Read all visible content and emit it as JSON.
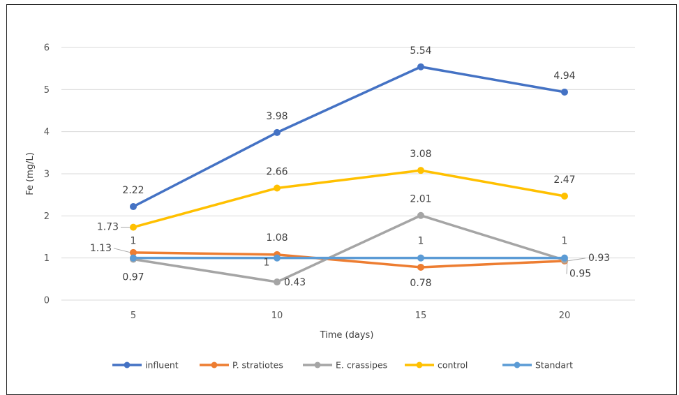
{
  "chart_data": {
    "type": "line",
    "x": [
      5,
      10,
      15,
      20
    ],
    "xlabel": "Time (days)",
    "ylabel": "Fe (mg/L)",
    "ylim": [
      0,
      6
    ],
    "yticks": [
      0,
      1,
      2,
      3,
      4,
      5,
      6
    ],
    "grid": true,
    "legend": "bottom",
    "series": [
      {
        "name": "influent",
        "color": "#4472C4",
        "values": [
          2.22,
          3.98,
          5.54,
          4.94
        ],
        "labels": [
          "2.22",
          "3.98",
          "5.54",
          "4.94"
        ]
      },
      {
        "name": "P. stratiotes",
        "color": "#ED7D31",
        "values": [
          1.13,
          1.08,
          0.78,
          0.93
        ],
        "labels": [
          "1.13",
          "1.08",
          "0.78",
          "0.93"
        ]
      },
      {
        "name": "E. crassipes",
        "color": "#A5A5A5",
        "values": [
          0.97,
          0.43,
          2.01,
          0.95
        ],
        "labels": [
          "0.97",
          "0.43",
          "2.01",
          "0.95"
        ]
      },
      {
        "name": "control",
        "color": "#FFC000",
        "values": [
          1.73,
          2.66,
          3.08,
          2.47
        ],
        "labels": [
          "1.73",
          "2.66",
          "3.08",
          "2.47"
        ]
      },
      {
        "name": "Standart",
        "color": "#5B9BD5",
        "values": [
          1,
          1,
          1,
          1
        ],
        "labels": [
          "1",
          "1",
          "1",
          "1"
        ]
      }
    ]
  }
}
